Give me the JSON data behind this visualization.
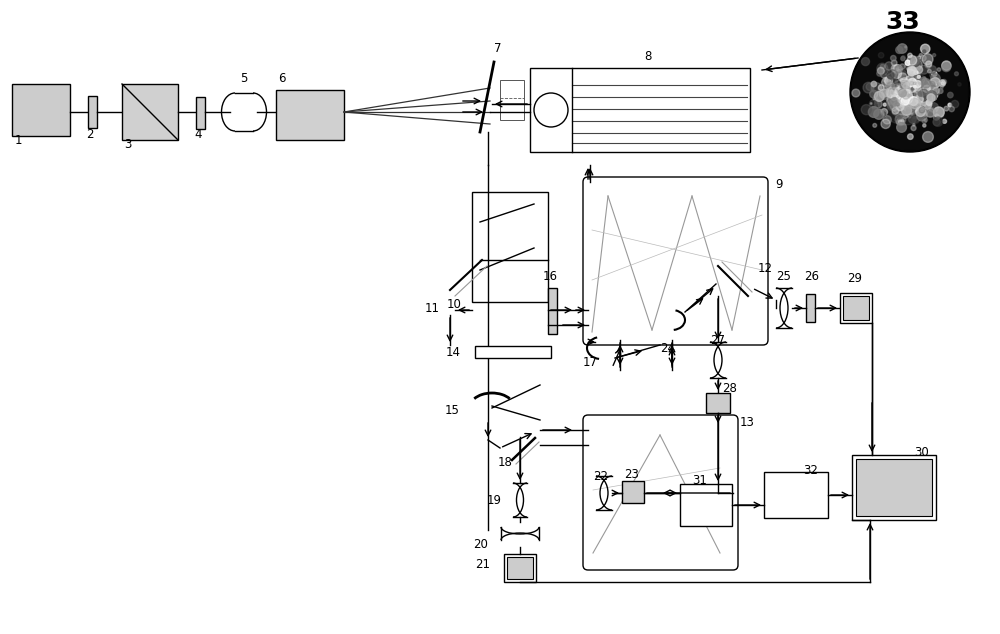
{
  "bg_color": "#ffffff",
  "lc": "#000000",
  "gray": "#999999",
  "lgray": "#cccccc",
  "cfill": "#d0d0d0",
  "fig_width": 10.0,
  "fig_height": 6.34,
  "lw": 1.0
}
